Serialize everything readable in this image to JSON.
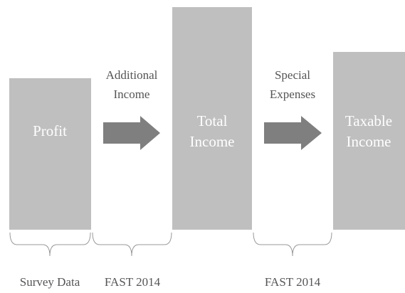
{
  "boxes": [
    {
      "lines": [
        "Profit"
      ]
    },
    {
      "lines": [
        "Total",
        "Income"
      ]
    },
    {
      "lines": [
        "Taxable",
        "Income"
      ]
    }
  ],
  "arrows": [
    {
      "lines": [
        "Additional",
        "Income"
      ]
    },
    {
      "lines": [
        "Special",
        "Expenses"
      ]
    }
  ],
  "sources": [
    "Survey Data",
    "FAST 2014",
    "FAST 2014"
  ]
}
